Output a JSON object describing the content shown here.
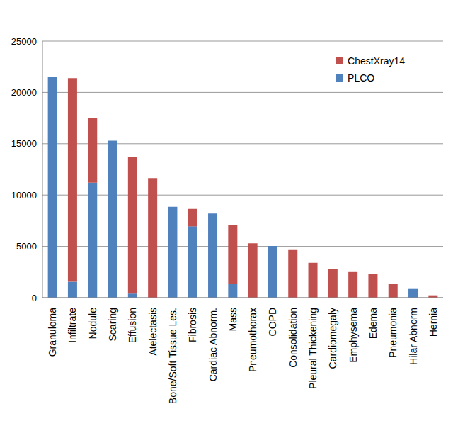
{
  "chart_data": {
    "type": "bar",
    "stacked": true,
    "grid": true,
    "legend": "upper right",
    "categories": [
      "Granuloma",
      "Infiltrate",
      "Nodule",
      "Scaring",
      "Effusion",
      "Atelectasis",
      "Bone/Soft Tissue Les.",
      "Fibrosis",
      "Cardiac Abnorm.",
      "Mass",
      "Pneumothorax",
      "COPD",
      "Consolidation",
      "Pleural Thickening",
      "Cardiomegaly",
      "Emphysema",
      "Edema",
      "Pneumonia",
      "Hilar Abnorm",
      "Hernia"
    ],
    "series": [
      {
        "name": "PLCO",
        "color": "#4f81bd",
        "values": [
          21500,
          1550,
          11200,
          15300,
          400,
          0,
          8850,
          6950,
          8200,
          1350,
          0,
          5050,
          0,
          0,
          0,
          0,
          0,
          0,
          850,
          0
        ]
      },
      {
        "name": "ChestXray14",
        "color": "#c0504d",
        "values": [
          0,
          19850,
          6300,
          0,
          13350,
          11650,
          0,
          1700,
          0,
          5750,
          5300,
          0,
          4650,
          3400,
          2800,
          2500,
          2300,
          1350,
          0,
          230
        ]
      }
    ],
    "ylim": [
      0,
      25000
    ],
    "yticks": [
      0,
      5000,
      10000,
      15000,
      20000,
      25000
    ]
  }
}
